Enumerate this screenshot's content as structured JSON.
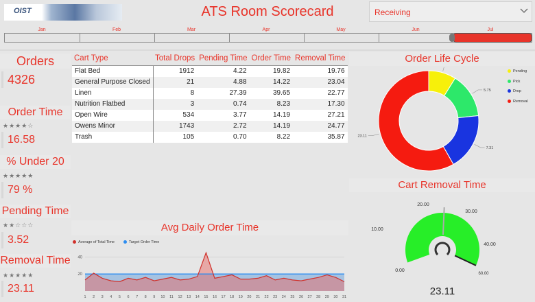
{
  "header": {
    "logo_text": "OIST",
    "title": "ATS Room Scorecard",
    "slicer_value": "Receiving"
  },
  "timeline": {
    "months": [
      "Jan",
      "Feb",
      "Mar",
      "Apr",
      "May",
      "Jun",
      "Jul"
    ],
    "selected_month": "Jul"
  },
  "kpis": {
    "orders": {
      "title": "Orders",
      "value": "4326"
    },
    "order_time": {
      "title": "Order Time",
      "stars": "★★★★☆",
      "rating": 4,
      "value": "16.58"
    },
    "pct_under_20": {
      "title": "% Under 20",
      "stars": "★★★★★",
      "rating": 5,
      "value": "79 %"
    },
    "pending_time": {
      "title": "Pending Time",
      "stars": "★★☆☆☆",
      "rating": 2,
      "value": "3.52"
    },
    "removal_time": {
      "title": "Removal Time",
      "stars": "★★★★★",
      "rating": 5,
      "value": "23.11"
    }
  },
  "table": {
    "headers": [
      "Cart Type",
      "Total Drops",
      "Pending Time",
      "Order Time",
      "Removal Time"
    ],
    "rows": [
      [
        "Flat Bed",
        "1912",
        "4.22",
        "19.82",
        "19.76"
      ],
      [
        "General Purpose Closed",
        "21",
        "4.88",
        "14.22",
        "23.04"
      ],
      [
        "Linen",
        "8",
        "27.39",
        "39.65",
        "22.77"
      ],
      [
        "Nutrition Flatbed",
        "3",
        "0.74",
        "8.23",
        "17.30"
      ],
      [
        "Open Wire",
        "534",
        "3.77",
        "14.19",
        "27.21"
      ],
      [
        "Owens Minor",
        "1743",
        "2.72",
        "14.19",
        "24.77"
      ],
      [
        "Trash",
        "105",
        "0.70",
        "8.22",
        "35.87"
      ]
    ]
  },
  "life_cycle": {
    "title": "Order Life Cycle",
    "legend": [
      "Pending",
      "Pick",
      "Drop",
      "Removal"
    ],
    "colors": [
      "#f7f00a",
      "#2de86a",
      "#1934e0",
      "#f51b10"
    ]
  },
  "cart_removal": {
    "title": "Cart Removal Time",
    "value_label": "23.11"
  },
  "avg_daily": {
    "title": "Avg Daily Order Time",
    "legend": [
      "Average of Total Time",
      "Target Order Time"
    ],
    "colors": {
      "average": "#d0302a",
      "target": "#2d8df0"
    }
  },
  "chart_data": [
    {
      "type": "pie",
      "title": "Order Life Cycle",
      "categories": [
        "Pending",
        "Pick",
        "Drop",
        "Removal"
      ],
      "values": [
        3.52,
        5.75,
        7.31,
        23.11
      ],
      "data_labels": [
        "3.52",
        "5.75",
        "7.31",
        "23.11"
      ],
      "donut": true
    },
    {
      "type": "gauge",
      "title": "Cart Removal Time",
      "value": 23.11,
      "min": 0,
      "max": 60,
      "target": 30,
      "ticks": [
        "0.00",
        "10.00",
        "20.00",
        "30.00",
        "40.00",
        "60.00"
      ]
    },
    {
      "type": "area",
      "title": "Avg Daily Order Time",
      "x": [
        1,
        2,
        3,
        4,
        5,
        6,
        7,
        8,
        9,
        10,
        11,
        12,
        13,
        14,
        15,
        16,
        17,
        18,
        19,
        20,
        21,
        22,
        23,
        24,
        25,
        26,
        27,
        28,
        29,
        30,
        31
      ],
      "series": [
        {
          "name": "Average of Total Time",
          "values": [
            13,
            21,
            15,
            12,
            11,
            15,
            13,
            16,
            12,
            14,
            16,
            13,
            14,
            17,
            45,
            15,
            17,
            19,
            14,
            14,
            15,
            18,
            13,
            15,
            13,
            12,
            14,
            16,
            19,
            16,
            11
          ]
        },
        {
          "name": "Target Order Time",
          "values": [
            20,
            20,
            20,
            20,
            20,
            20,
            20,
            20,
            20,
            20,
            20,
            20,
            20,
            20,
            20,
            20,
            20,
            20,
            20,
            20,
            20,
            20,
            20,
            20,
            20,
            20,
            20,
            20,
            20,
            20,
            20
          ]
        }
      ],
      "y_ticks": [
        20,
        40
      ],
      "ylim": [
        0,
        50
      ],
      "grid": true,
      "legend_position": "top-left"
    }
  ]
}
